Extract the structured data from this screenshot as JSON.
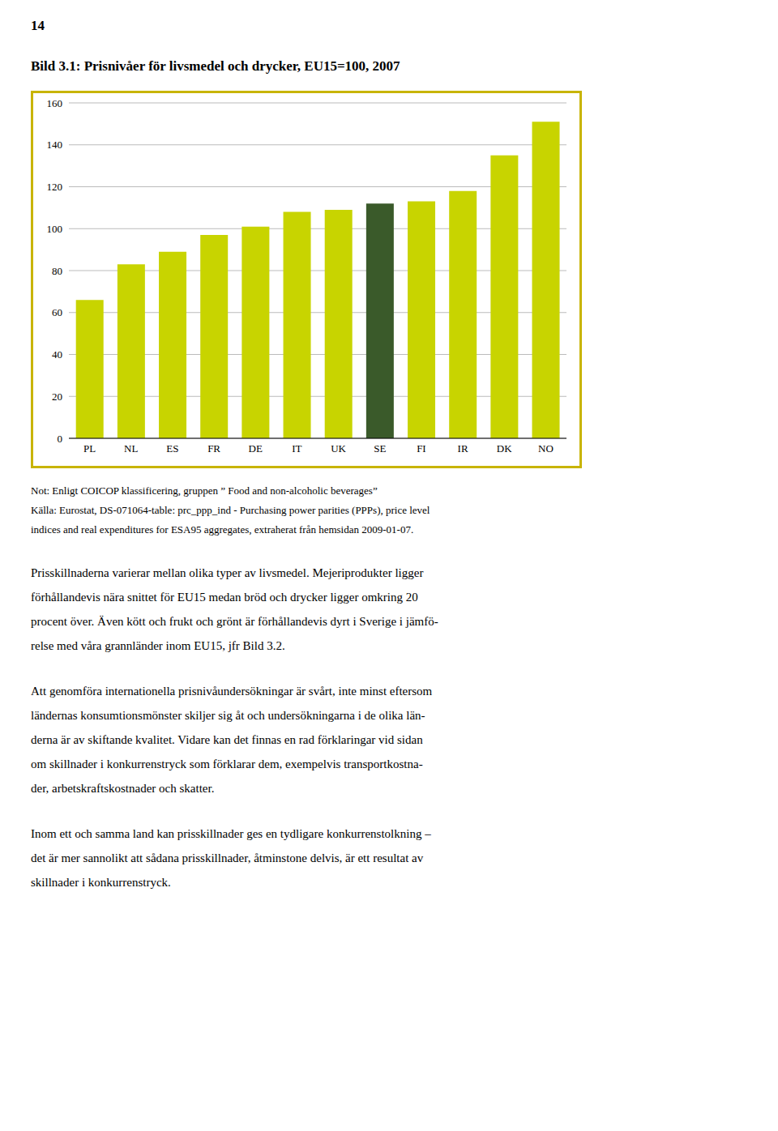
{
  "chart_data": {
    "type": "bar",
    "title": "Bild 3.1: Prisnivåer för livsmedel och drycker, EU15=100, 2007",
    "categories": [
      "PL",
      "NL",
      "ES",
      "FR",
      "DE",
      "IT",
      "UK",
      "SE",
      "FI",
      "IR",
      "DK",
      "NO"
    ],
    "values": [
      66,
      83,
      89,
      97,
      101,
      108,
      109,
      112,
      113,
      118,
      135,
      151
    ],
    "colors": [
      "#c8d400",
      "#c8d400",
      "#c8d400",
      "#c8d400",
      "#c8d400",
      "#c8d400",
      "#c8d400",
      "#3a5a2a",
      "#c8d400",
      "#c8d400",
      "#c8d400",
      "#c8d400"
    ],
    "ylim": [
      0,
      160
    ],
    "yticks": [
      0,
      20,
      40,
      60,
      80,
      100,
      120,
      140,
      160
    ],
    "grid": true,
    "annotations": [
      [
        "14"
      ],
      [
        "Not: Enligt COICOP klassificering, gruppen ” Food and non-alcoholic beverages”",
        "Källa: Eurostat, DS-071064-table: prc_ppp_ind - Purchasing power parities (PPPs), price level",
        "indices and real expenditures for ESA95 aggregates, extraherat från hemsidan 2009-01-07."
      ],
      [
        "Prisskillnaderna varierar mellan olika typer av livsmedel. Mejeriprodukter ligger",
        "förhållandevis nära snittet för EU15 medan bröd och drycker ligger omkring 20",
        "procent över. Även kött och frukt och grönt är förhållandevis dyrt i Sverige i jämfö-",
        "relse med våra grannländer inom EU15, jfr Bild 3.2."
      ],
      [
        "Att genomföra internationella prisnivåundersökningar är svårt, inte minst eftersom",
        "ländernas konsumtionsmönster skiljer sig åt och undersökningarna i de olika län-",
        "derna är av skiftande kvalitet. Vidare kan det finnas en rad förklaringar vid sidan",
        "om skillnader i konkurrenstryck som förklarar dem, exempelvis transportkostna-",
        "der, arbetskraftskostnader och skatter."
      ],
      [
        "Inom ett och samma land kan prisskillnader ges en tydligare konkurrenstolkning –",
        "det är mer sannolikt att sådana prisskillnader, åtminstone delvis, är ett resultat av",
        "skillnader i konkurrenstryck."
      ]
    ]
  }
}
